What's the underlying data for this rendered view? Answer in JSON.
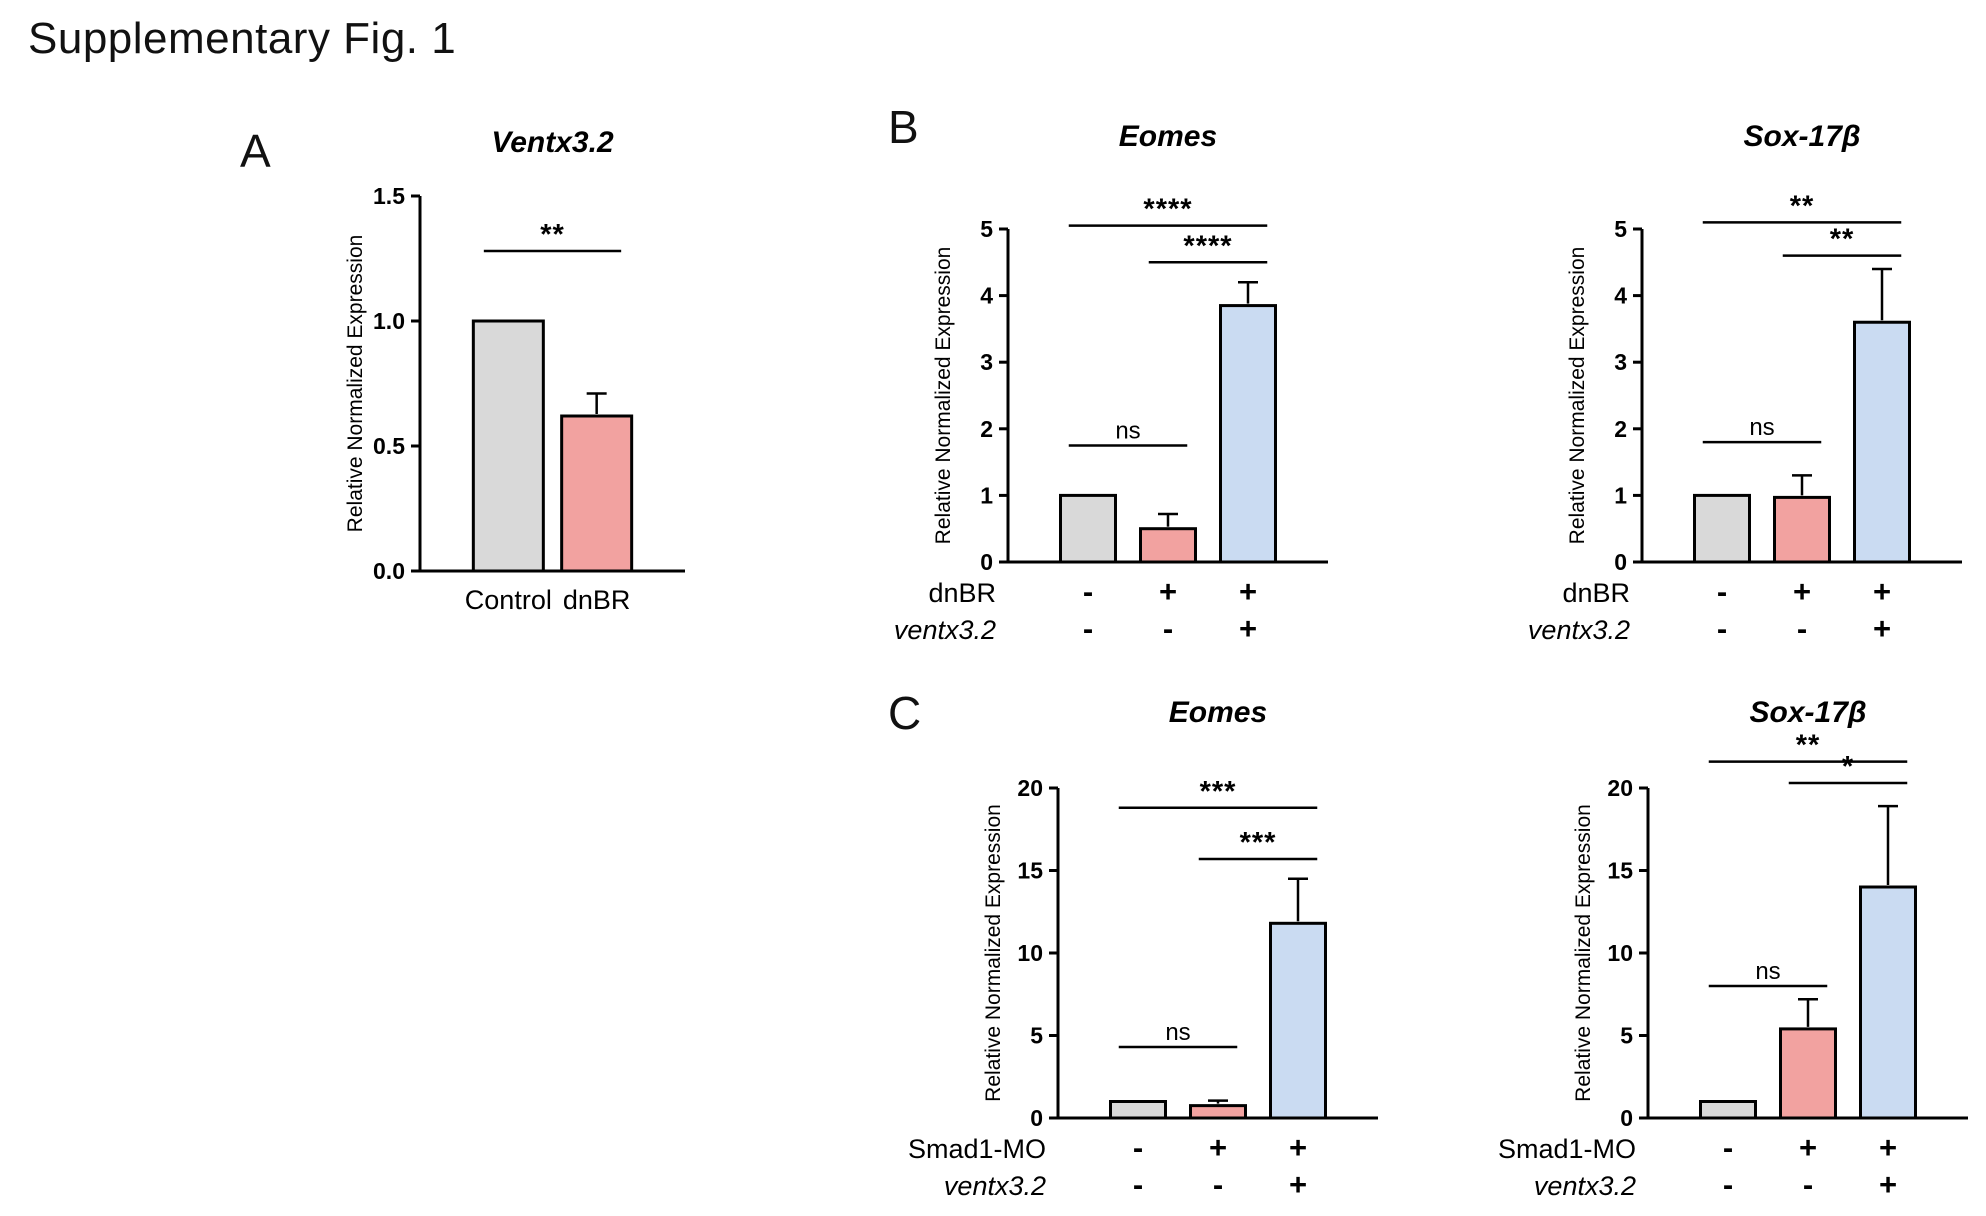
{
  "figure_title": "Supplementary Fig. 1",
  "panels": [
    {
      "label": "A"
    },
    {
      "label": "B"
    },
    {
      "label": "C"
    }
  ],
  "colors": {
    "gray": "#d9d9d9",
    "pink": "#f2a2a0",
    "blue": "#cadbf2",
    "axis": "#000000"
  },
  "chart_data": [
    {
      "panel": "A",
      "type": "bar",
      "title": "Ventx3.2",
      "ylabel": "Relative Normalized Expression",
      "ymax": 1.5,
      "yticks": [
        0,
        0.5,
        1,
        1.5
      ],
      "ytick_decimals": 1,
      "categories": [
        "Control",
        "dnBR"
      ],
      "values": [
        1.0,
        0.62
      ],
      "errors": [
        0,
        0.09
      ],
      "bar_colors": [
        "gray",
        "pink"
      ],
      "significance": [
        {
          "from": 0,
          "to": 1,
          "label": "**",
          "y": 1.28
        }
      ]
    },
    {
      "panel": "B",
      "type": "bar",
      "title": "Eomes",
      "ylabel": "Relative Normalized Expression",
      "ymax": 5,
      "yticks": [
        0,
        1,
        2,
        3,
        4,
        5
      ],
      "ytick_decimals": 0,
      "values": [
        1.0,
        0.5,
        3.85
      ],
      "errors": [
        0,
        0.22,
        0.35
      ],
      "bar_colors": [
        "gray",
        "pink",
        "blue"
      ],
      "significance": [
        {
          "from": 0,
          "to": 1,
          "label": "ns",
          "y": 1.75
        },
        {
          "from": 1,
          "to": 2,
          "label": "****",
          "y": 4.5
        },
        {
          "from": 0,
          "to": 2,
          "label": "****",
          "y": 5.05
        }
      ],
      "xrows": [
        {
          "label": "dnBR",
          "italic": false,
          "values": [
            "-",
            "+",
            "+"
          ]
        },
        {
          "label": "ventx3.2",
          "italic": true,
          "values": [
            "-",
            "-",
            "+"
          ]
        }
      ]
    },
    {
      "panel": "B",
      "type": "bar",
      "title": "Sox-17β",
      "ylabel": "Relative Normalized Expression",
      "ymax": 5,
      "yticks": [
        0,
        1,
        2,
        3,
        4,
        5
      ],
      "ytick_decimals": 0,
      "values": [
        1.0,
        0.97,
        3.6
      ],
      "errors": [
        0,
        0.33,
        0.8
      ],
      "bar_colors": [
        "gray",
        "pink",
        "blue"
      ],
      "significance": [
        {
          "from": 0,
          "to": 1,
          "label": "ns",
          "y": 1.8
        },
        {
          "from": 1,
          "to": 2,
          "label": "**",
          "y": 4.6
        },
        {
          "from": 0,
          "to": 2,
          "label": "**",
          "y": 5.1
        }
      ],
      "xrows": [
        {
          "label": "dnBR",
          "italic": false,
          "values": [
            "-",
            "+",
            "+"
          ]
        },
        {
          "label": "ventx3.2",
          "italic": true,
          "values": [
            "-",
            "-",
            "+"
          ]
        }
      ]
    },
    {
      "panel": "C",
      "type": "bar",
      "title": "Eomes",
      "ylabel": "Relative Normalized Expression",
      "ymax": 20,
      "yticks": [
        0,
        5,
        10,
        15,
        20
      ],
      "ytick_decimals": 0,
      "values": [
        1.0,
        0.75,
        11.8
      ],
      "errors": [
        0,
        0.3,
        2.7
      ],
      "bar_colors": [
        "gray",
        "pink",
        "blue"
      ],
      "significance": [
        {
          "from": 0,
          "to": 1,
          "label": "ns",
          "y": 4.3
        },
        {
          "from": 1,
          "to": 2,
          "label": "***",
          "y": 15.7
        },
        {
          "from": 0,
          "to": 2,
          "label": "***",
          "y": 18.8
        }
      ],
      "xrows": [
        {
          "label": "Smad1-MO",
          "italic": false,
          "values": [
            "-",
            "+",
            "+"
          ]
        },
        {
          "label": "ventx3.2",
          "italic": true,
          "values": [
            "-",
            "-",
            "+"
          ]
        }
      ]
    },
    {
      "panel": "C",
      "type": "bar",
      "title": "Sox-17β",
      "ylabel": "Relative Normalized Expression",
      "ymax": 20,
      "yticks": [
        0,
        5,
        10,
        15,
        20
      ],
      "ytick_decimals": 0,
      "values": [
        1.0,
        5.4,
        14.0
      ],
      "errors": [
        0,
        1.8,
        4.9
      ],
      "bar_colors": [
        "gray",
        "pink",
        "blue"
      ],
      "significance": [
        {
          "from": 0,
          "to": 1,
          "label": "ns",
          "y": 8.0
        },
        {
          "from": 1,
          "to": 2,
          "label": "*",
          "y": 20.3
        },
        {
          "from": 0,
          "to": 2,
          "label": "**",
          "y": 21.6
        }
      ],
      "xrows": [
        {
          "label": "Smad1-MO",
          "italic": false,
          "values": [
            "-",
            "+",
            "+"
          ]
        },
        {
          "label": "ventx3.2",
          "italic": true,
          "values": [
            "-",
            "-",
            "+"
          ]
        }
      ]
    }
  ]
}
